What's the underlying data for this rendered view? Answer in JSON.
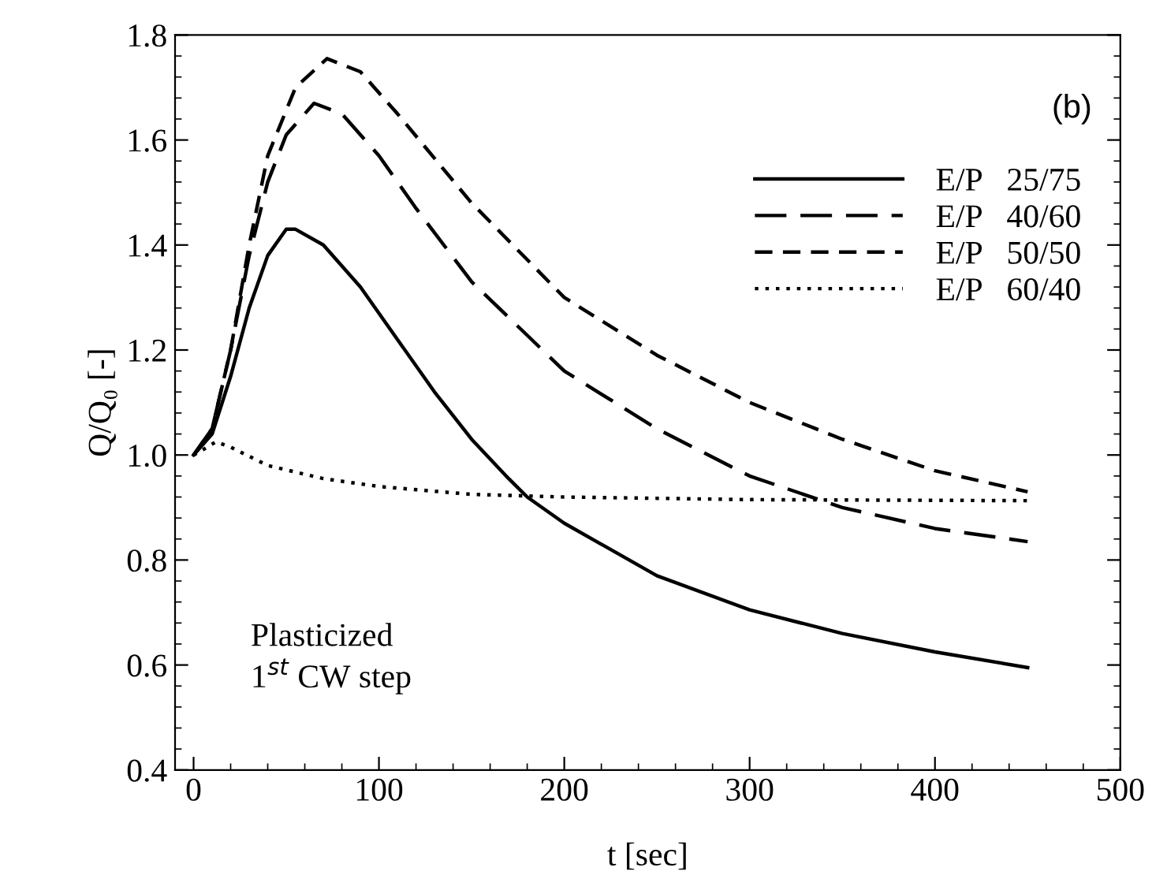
{
  "chart_data": {
    "type": "line",
    "xlabel": "t [sec]",
    "ylabel": "Q/Q₀ [-]",
    "xlim": [
      -10,
      500
    ],
    "xticks": [
      0,
      100,
      200,
      300,
      400,
      500
    ],
    "ylim": [
      0.4,
      1.8
    ],
    "yticks": [
      {
        "value": 0.4,
        "label": "0.4"
      },
      {
        "value": 0.6,
        "label": "0.6"
      },
      {
        "value": 0.8,
        "label": "0.8"
      },
      {
        "value": 1.0,
        "label": "1.0"
      },
      {
        "value": 1.2,
        "label": "1.2"
      },
      {
        "value": 1.4,
        "label": "1.4"
      },
      {
        "value": 1.6,
        "label": "1.6"
      },
      {
        "value": 1.8,
        "label": "1.8"
      }
    ],
    "grid": false,
    "legend": "top right",
    "marker": "none",
    "annotations": [
      "(b)",
      "Plasticized\n1$^{st}$ CW step"
    ],
    "series": [
      {
        "name": "E/P   25/75",
        "color": "#000000",
        "line_style": "solid",
        "x": [
          0,
          10,
          20,
          30,
          40,
          50,
          55,
          70,
          90,
          110,
          130,
          150,
          170,
          180,
          200,
          250,
          300,
          350,
          400,
          450
        ],
        "values": [
          1.0,
          1.04,
          1.15,
          1.28,
          1.38,
          1.43,
          1.43,
          1.4,
          1.32,
          1.22,
          1.12,
          1.03,
          0.955,
          0.92,
          0.87,
          0.77,
          0.705,
          0.66,
          0.625,
          0.595
        ]
      },
      {
        "name": "E/P   40/60",
        "color": "#000000",
        "line_style": "dashed",
        "x": [
          0,
          10,
          20,
          30,
          40,
          50,
          65,
          80,
          100,
          120,
          150,
          200,
          250,
          300,
          350,
          400,
          450
        ],
        "values": [
          1.0,
          1.05,
          1.2,
          1.38,
          1.52,
          1.61,
          1.67,
          1.65,
          1.57,
          1.47,
          1.33,
          1.16,
          1.05,
          0.96,
          0.9,
          0.86,
          0.835
        ]
      },
      {
        "name": "E/P   50/50",
        "color": "#000000",
        "line_style": "dashed",
        "x": [
          0,
          10,
          20,
          30,
          40,
          55,
          72,
          90,
          110,
          150,
          200,
          250,
          300,
          350,
          400,
          450
        ],
        "values": [
          1.0,
          1.05,
          1.2,
          1.4,
          1.57,
          1.7,
          1.755,
          1.73,
          1.65,
          1.48,
          1.3,
          1.19,
          1.1,
          1.03,
          0.97,
          0.93
        ]
      },
      {
        "name": "E/P   60/40",
        "color": "#000000",
        "line_style": "dotted",
        "x": [
          0,
          5,
          12,
          20,
          40,
          70,
          100,
          150,
          200,
          300,
          450
        ],
        "values": [
          1.0,
          1.01,
          1.025,
          1.015,
          0.98,
          0.955,
          0.94,
          0.925,
          0.92,
          0.915,
          0.913
        ]
      }
    ]
  }
}
